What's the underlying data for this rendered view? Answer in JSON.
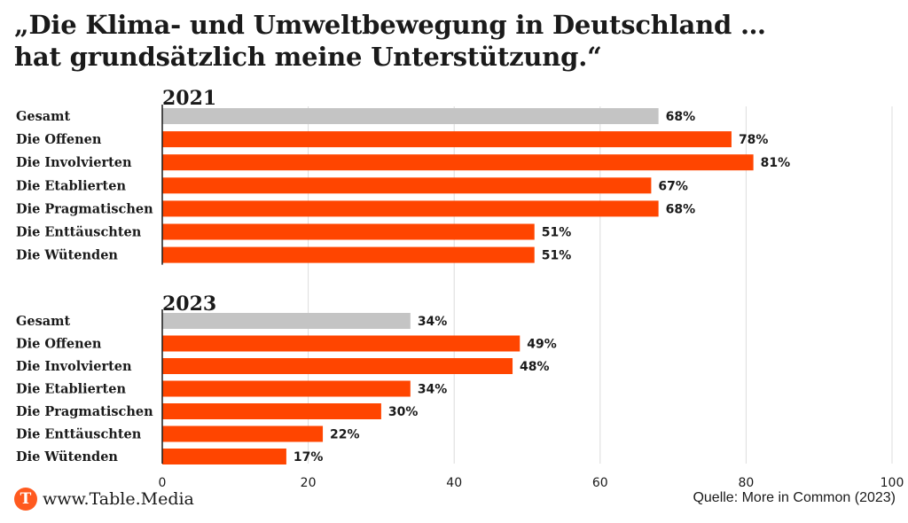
{
  "header": {
    "title_line1": "„Die Klima- und Umweltbewegung in Deutschland …",
    "title_line2": "hat grundsätzlich meine Unterstützung.“"
  },
  "chart_data": {
    "type": "bar",
    "orientation": "horizontal",
    "xlim": [
      0,
      100
    ],
    "xticks": [
      0,
      20,
      40,
      60,
      80,
      100
    ],
    "grid": true,
    "value_suffix": "%",
    "colors": {
      "highlight": "#ff4500",
      "total": "#c4c4c4"
    },
    "panels": [
      {
        "title": "2021",
        "categories": [
          "Gesamt",
          "Die Offenen",
          "Die Involvierten",
          "Die Etablierten",
          "Die Pragmatischen",
          "Die Enttäuschten",
          "Die Wütenden"
        ],
        "values": [
          68,
          78,
          81,
          67,
          68,
          51,
          51
        ]
      },
      {
        "title": "2023",
        "categories": [
          "Gesamt",
          "Die Offenen",
          "Die Involvierten",
          "Die Etablierten",
          "Die Pragmatischen",
          "Die Enttäuschten",
          "Die Wütenden"
        ],
        "values": [
          34,
          49,
          48,
          34,
          30,
          22,
          17
        ]
      }
    ]
  },
  "footer": {
    "brand_icon_letter": "T",
    "brand": "www.Table.Media",
    "source": "Quelle: More in Common (2023)"
  }
}
